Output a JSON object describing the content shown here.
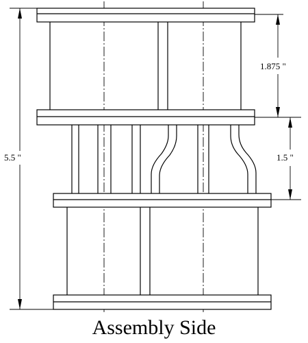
{
  "drawing": {
    "title": "Assembly Side",
    "dimensions": {
      "overall_height": "5.5 \"",
      "upper_section": "1.875 \"",
      "middle_section": "1.5 \""
    }
  }
}
